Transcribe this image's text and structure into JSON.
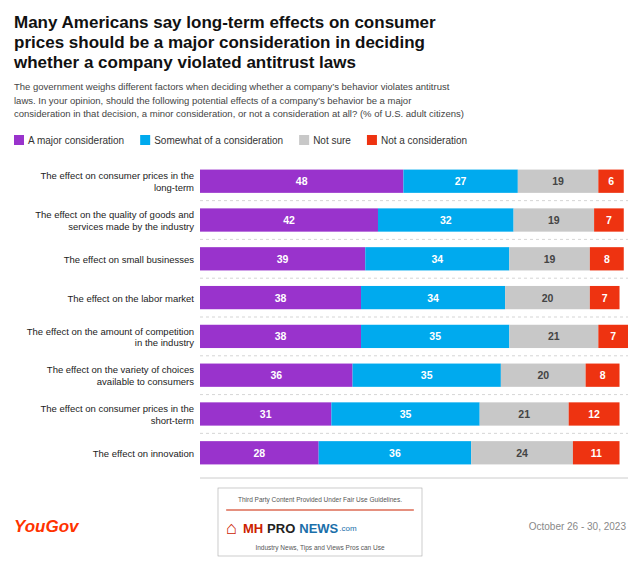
{
  "chart_data": {
    "type": "bar",
    "orientation": "horizontal",
    "stacked": true,
    "data_labels": true,
    "title": "Many Americans say long-term effects on consumer\nprices should be a major consideration in deciding\nwhether a company violated antitrust laws",
    "subtitle": "The government weighs different factors when deciding whether a company’s behavior violates antitrust\nlaws. In your opinion, should the following potential effects of a company’s behavior be a major\nconsideration in that decision, a minor consideration, or not a consideration at all? (% of U.S. adult citizens)",
    "categories": [
      "The effect on consumer prices in the\nlong-term",
      "The effect on the quality of goods and\nservices made by the industry",
      "The effect on small businesses",
      "The effect on the labor market",
      "The effect on the amount of competition\nin the industry",
      "The effect on the variety of choices\navailable to consumers",
      "The effect on consumer prices in the\nshort-term",
      "The effect on innovation"
    ],
    "series": [
      {
        "name": "A major consideration",
        "color": "#9933cc",
        "values": [
          48,
          42,
          39,
          38,
          38,
          36,
          31,
          28
        ]
      },
      {
        "name": "Somewhat of a consideration",
        "color": "#00aaee",
        "values": [
          27,
          32,
          34,
          34,
          35,
          35,
          35,
          36
        ]
      },
      {
        "name": "Not sure",
        "color": "#c8c8c8",
        "values": [
          19,
          19,
          19,
          20,
          21,
          20,
          21,
          24
        ]
      },
      {
        "name": "Not a consideration",
        "color": "#ee3311",
        "values": [
          6,
          7,
          8,
          7,
          7,
          8,
          12,
          11
        ]
      }
    ],
    "xlim": [
      0,
      101
    ],
    "legend": "top",
    "grid": false,
    "tick_labels": "y",
    "annotations": [
      "YouGov",
      "October 26 - 30, 2023",
      "Third Party Content Provided Under Fair Use Guidelines.",
      "⌂",
      "MH",
      "PRO",
      "NEWS",
      ".com",
      "Industry News, Tips and Views Pros can Use"
    ]
  }
}
